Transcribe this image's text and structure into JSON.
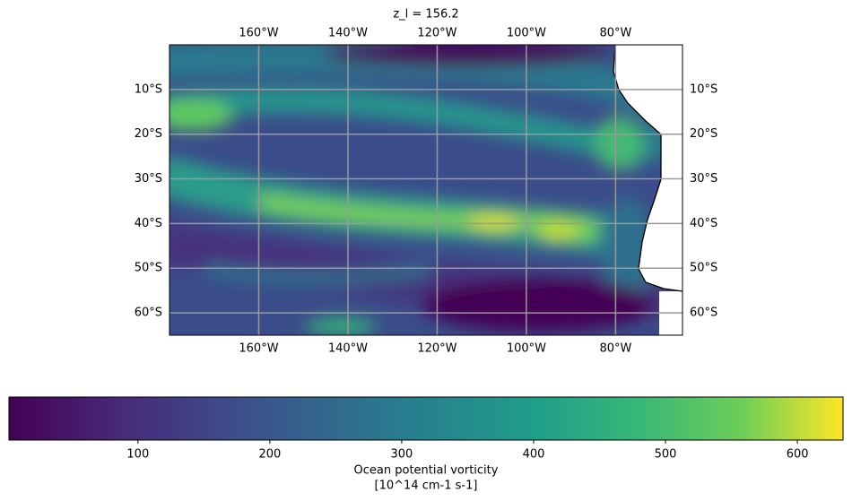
{
  "chart_data": {
    "type": "map",
    "title": "z_l = 156.2",
    "xlim": [
      -180,
      -65
    ],
    "ylim": [
      -65,
      0
    ],
    "xticks": [
      {
        "value": -160,
        "label": "160°W"
      },
      {
        "value": -140,
        "label": "140°W"
      },
      {
        "value": -120,
        "label": "120°W"
      },
      {
        "value": -100,
        "label": "100°W"
      },
      {
        "value": -80,
        "label": "80°W"
      }
    ],
    "yticks": [
      {
        "value": -10,
        "label": "10°S"
      },
      {
        "value": -20,
        "label": "20°S"
      },
      {
        "value": -30,
        "label": "30°S"
      },
      {
        "value": -40,
        "label": "40°S"
      },
      {
        "value": -50,
        "label": "50°S"
      },
      {
        "value": -60,
        "label": "60°S"
      }
    ],
    "grid": true,
    "colorbar": {
      "label": [
        "Ocean potential vorticity",
        "[10^14 cm-1 s-1]"
      ],
      "lim": [
        2.2,
        634.6
      ],
      "ticks": [
        100,
        200,
        300,
        400,
        500,
        600
      ]
    }
  }
}
